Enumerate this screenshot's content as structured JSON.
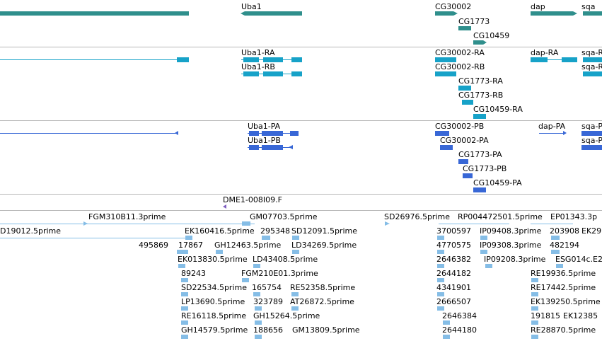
{
  "colors": {
    "gene": "#2f8f8c",
    "transcript": "#17a2c8",
    "protein": "#3867d6",
    "clone": "#7f5fc0",
    "est": "#85bde6",
    "divider": "#b8b8b8"
  },
  "tracks": {
    "genes": {
      "labels": [
        "Uba1",
        "CG30002",
        "CG1773",
        "CG10459",
        "dap",
        "sqa"
      ]
    },
    "transcripts": {
      "labels": [
        "Uba1-RA",
        "Uba1-RB",
        "CG30002-RA",
        "CG30002-RB",
        "CG1773-RA",
        "CG1773-RB",
        "CG10459-RA",
        "dap-RA",
        "sqa-R",
        "sqa-R"
      ]
    },
    "proteins": {
      "labels": [
        "Uba1-PA",
        "Uba1-PB",
        "CG30002-PB",
        "CG30002-PA",
        "CG1773-PA",
        "CG1773-PB",
        "CG10459-PA",
        "dap-PA",
        "sqa-P",
        "sqa-P"
      ]
    },
    "clones": {
      "labels": [
        "DME1-008I09.F"
      ]
    },
    "ests": {
      "labels": [
        "FGM310B11.3prime",
        "GM07703.5prime",
        "SD26976.5prime",
        "RP004472501.5prime",
        "EP01343.3p",
        "D19012.5prime",
        "EK160416.5prime",
        "295348",
        "SD12091.5prime",
        "3700597",
        "IP09408.3prime",
        "203908",
        "EK29",
        "495869",
        "17867",
        "GH12463.5prime",
        "LD34269.5prime",
        "4770575",
        "IP09308.3prime",
        "482194",
        "EK013830.5prime",
        "LD43408.5prime",
        "2646382",
        "IP09208.3prime",
        "ESG014c.E2",
        "89243",
        "FGM210E01.3prime",
        "2644182",
        "RE19936.5prime",
        "SD22534.5prime",
        "165754",
        "RE52358.5prime",
        "4341901",
        "RE17442.5prime",
        "LP13690.5prime",
        "323789",
        "AT26872.5prime",
        "2666507",
        "EK139250.5prime",
        "RE16118.5prime",
        "GH15264.5prime",
        "2646384",
        "191815",
        "EK12385",
        "GH14579.5prime",
        "188656",
        "GM13809.5prime",
        "2644180",
        "RE28870.5prime"
      ]
    }
  }
}
